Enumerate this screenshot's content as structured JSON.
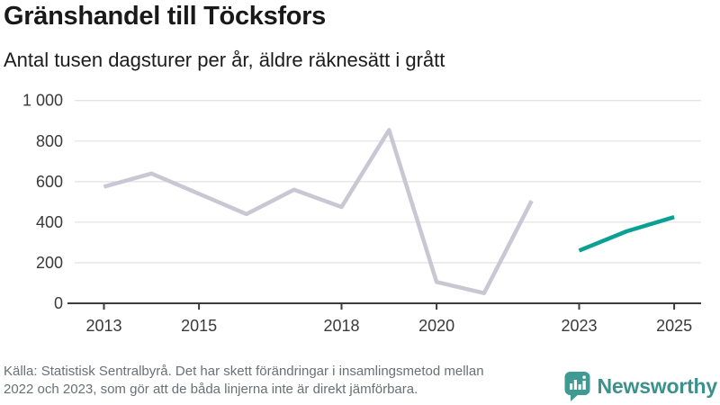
{
  "header": {
    "title": "Gränshandel till Töcksfors",
    "subtitle": "Antal tusen dagsturer per år, äldre räknesätt i grått"
  },
  "chart_data": {
    "type": "line",
    "title": "Gränshandel till Töcksfors",
    "subtitle": "Antal tusen dagsturer per år, äldre räknesätt i grått",
    "grid": "horizontal",
    "x_axis": {
      "min": 2013,
      "max": 2025,
      "tick_years": [
        2013,
        2015,
        2018,
        2020,
        2023,
        2025
      ],
      "tick_labels": [
        "2013",
        "2015",
        "2018",
        "2020",
        "2023",
        "2025"
      ]
    },
    "y_axis": {
      "min": 0,
      "max": 1000,
      "ticks": [
        0,
        200,
        400,
        600,
        800,
        1000
      ],
      "tick_labels": [
        "0",
        "200",
        "400",
        "600",
        "800",
        "1 000"
      ]
    },
    "series": [
      {
        "name": "gray-line-aldre-raknesatt",
        "color": "#c9c7d3",
        "x": [
          2013,
          2014,
          2015,
          2016,
          2017,
          2018,
          2019,
          2020,
          2021,
          2022
        ],
        "values": [
          575,
          640,
          540,
          440,
          560,
          475,
          855,
          105,
          50,
          505
        ]
      },
      {
        "name": "teal-line",
        "color": "#0ba094",
        "x": [
          2023,
          2024,
          2025
        ],
        "values": [
          260,
          355,
          425
        ]
      }
    ],
    "colors": {
      "gridline": "#e4e4e4",
      "axis": "#3d3d3d",
      "tick_text": "#3a3a3a"
    }
  },
  "footer": {
    "source_lines": [
      "Källa: Statistisk Sentralbyrå. Det har skett förändringar i insamlingsmetod mellan",
      "2022 och 2023, som gör att de båda linjerna inte är direkt jämförbara."
    ],
    "logo_text": "Newsworthy",
    "logo_color": "#3b928c",
    "logo_icon_color": "#3f9a93"
  }
}
